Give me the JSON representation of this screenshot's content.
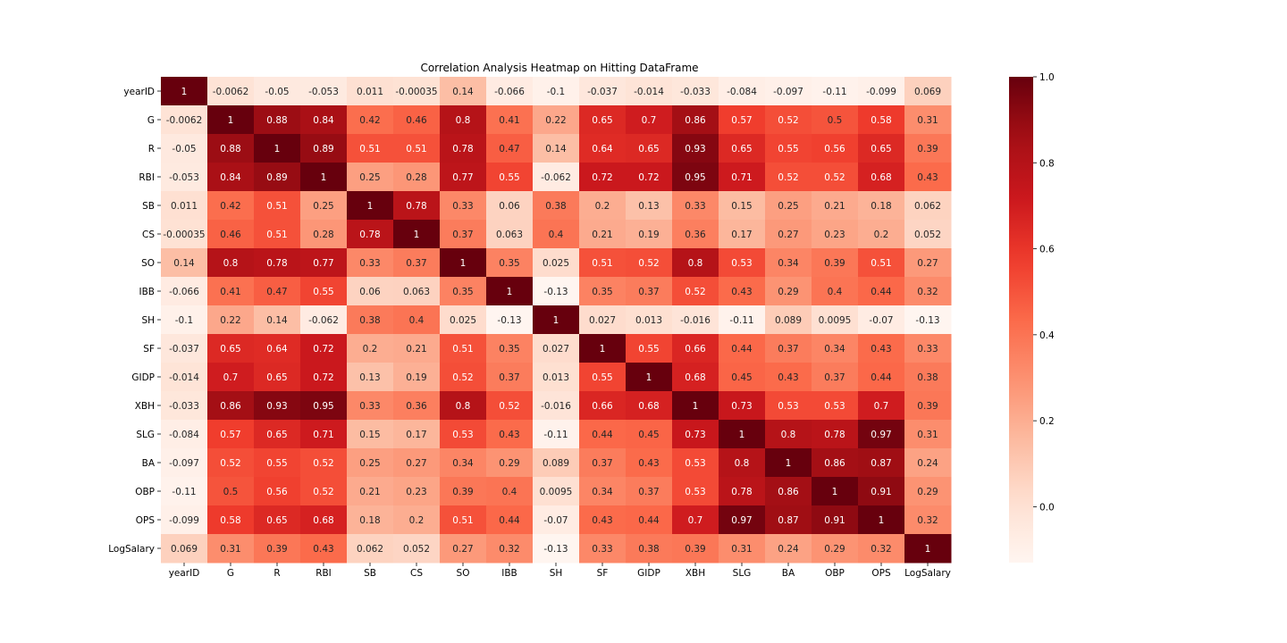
{
  "chart_data": {
    "type": "heatmap",
    "title": "Correlation Analysis Heatmap on Hitting DataFrame",
    "labels": [
      "yearID",
      "G",
      "R",
      "RBI",
      "SB",
      "CS",
      "SO",
      "IBB",
      "SH",
      "SF",
      "GIDP",
      "XBH",
      "SLG",
      "BA",
      "OBP",
      "OPS",
      "LogSalary"
    ],
    "values": [
      [
        "1",
        "-0.0062",
        "-0.05",
        "-0.053",
        "0.011",
        "-0.00035",
        "0.14",
        "-0.066",
        "-0.1",
        "-0.037",
        "-0.014",
        "-0.033",
        "-0.084",
        "-0.097",
        "-0.11",
        "-0.099",
        "0.069"
      ],
      [
        "-0.0062",
        "1",
        "0.88",
        "0.84",
        "0.42",
        "0.46",
        "0.8",
        "0.41",
        "0.22",
        "0.65",
        "0.7",
        "0.86",
        "0.57",
        "0.52",
        "0.5",
        "0.58",
        "0.31"
      ],
      [
        "-0.05",
        "0.88",
        "1",
        "0.89",
        "0.51",
        "0.51",
        "0.78",
        "0.47",
        "0.14",
        "0.64",
        "0.65",
        "0.93",
        "0.65",
        "0.55",
        "0.56",
        "0.65",
        "0.39"
      ],
      [
        "-0.053",
        "0.84",
        "0.89",
        "1",
        "0.25",
        "0.28",
        "0.77",
        "0.55",
        "-0.062",
        "0.72",
        "0.72",
        "0.95",
        "0.71",
        "0.52",
        "0.52",
        "0.68",
        "0.43"
      ],
      [
        "0.011",
        "0.42",
        "0.51",
        "0.25",
        "1",
        "0.78",
        "0.33",
        "0.06",
        "0.38",
        "0.2",
        "0.13",
        "0.33",
        "0.15",
        "0.25",
        "0.21",
        "0.18",
        "0.062"
      ],
      [
        "-0.00035",
        "0.46",
        "0.51",
        "0.28",
        "0.78",
        "1",
        "0.37",
        "0.063",
        "0.4",
        "0.21",
        "0.19",
        "0.36",
        "0.17",
        "0.27",
        "0.23",
        "0.2",
        "0.052"
      ],
      [
        "0.14",
        "0.8",
        "0.78",
        "0.77",
        "0.33",
        "0.37",
        "1",
        "0.35",
        "0.025",
        "0.51",
        "0.52",
        "0.8",
        "0.53",
        "0.34",
        "0.39",
        "0.51",
        "0.27"
      ],
      [
        "-0.066",
        "0.41",
        "0.47",
        "0.55",
        "0.06",
        "0.063",
        "0.35",
        "1",
        "-0.13",
        "0.35",
        "0.37",
        "0.52",
        "0.43",
        "0.29",
        "0.4",
        "0.44",
        "0.32"
      ],
      [
        "-0.1",
        "0.22",
        "0.14",
        "-0.062",
        "0.38",
        "0.4",
        "0.025",
        "-0.13",
        "1",
        "0.027",
        "0.013",
        "-0.016",
        "-0.11",
        "0.089",
        "0.0095",
        "-0.07",
        "-0.13"
      ],
      [
        "-0.037",
        "0.65",
        "0.64",
        "0.72",
        "0.2",
        "0.21",
        "0.51",
        "0.35",
        "0.027",
        "1",
        "0.55",
        "0.66",
        "0.44",
        "0.37",
        "0.34",
        "0.43",
        "0.33"
      ],
      [
        "-0.014",
        "0.7",
        "0.65",
        "0.72",
        "0.13",
        "0.19",
        "0.52",
        "0.37",
        "0.013",
        "0.55",
        "1",
        "0.68",
        "0.45",
        "0.43",
        "0.37",
        "0.44",
        "0.38"
      ],
      [
        "-0.033",
        "0.86",
        "0.93",
        "0.95",
        "0.33",
        "0.36",
        "0.8",
        "0.52",
        "-0.016",
        "0.66",
        "0.68",
        "1",
        "0.73",
        "0.53",
        "0.53",
        "0.7",
        "0.39"
      ],
      [
        "-0.084",
        "0.57",
        "0.65",
        "0.71",
        "0.15",
        "0.17",
        "0.53",
        "0.43",
        "-0.11",
        "0.44",
        "0.45",
        "0.73",
        "1",
        "0.8",
        "0.78",
        "0.97",
        "0.31"
      ],
      [
        "-0.097",
        "0.52",
        "0.55",
        "0.52",
        "0.25",
        "0.27",
        "0.34",
        "0.29",
        "0.089",
        "0.37",
        "0.43",
        "0.53",
        "0.8",
        "1",
        "0.86",
        "0.87",
        "0.24"
      ],
      [
        "-0.11",
        "0.5",
        "0.56",
        "0.52",
        "0.21",
        "0.23",
        "0.39",
        "0.4",
        "0.0095",
        "0.34",
        "0.37",
        "0.53",
        "0.78",
        "0.86",
        "1",
        "0.91",
        "0.29"
      ],
      [
        "-0.099",
        "0.58",
        "0.65",
        "0.68",
        "0.18",
        "0.2",
        "0.51",
        "0.44",
        "-0.07",
        "0.43",
        "0.44",
        "0.7",
        "0.97",
        "0.87",
        "0.91",
        "1",
        "0.32"
      ],
      [
        "0.069",
        "0.31",
        "0.39",
        "0.43",
        "0.062",
        "0.052",
        "0.27",
        "0.32",
        "-0.13",
        "0.33",
        "0.38",
        "0.39",
        "0.31",
        "0.24",
        "0.29",
        "0.32",
        "1"
      ]
    ],
    "colormap": "Reds",
    "color_range": [
      -0.13,
      1
    ],
    "colorbar_ticks": [
      "0.0",
      "0.2",
      "0.4",
      "0.6",
      "0.8",
      "1.0"
    ],
    "legend": "colorbar-right"
  }
}
